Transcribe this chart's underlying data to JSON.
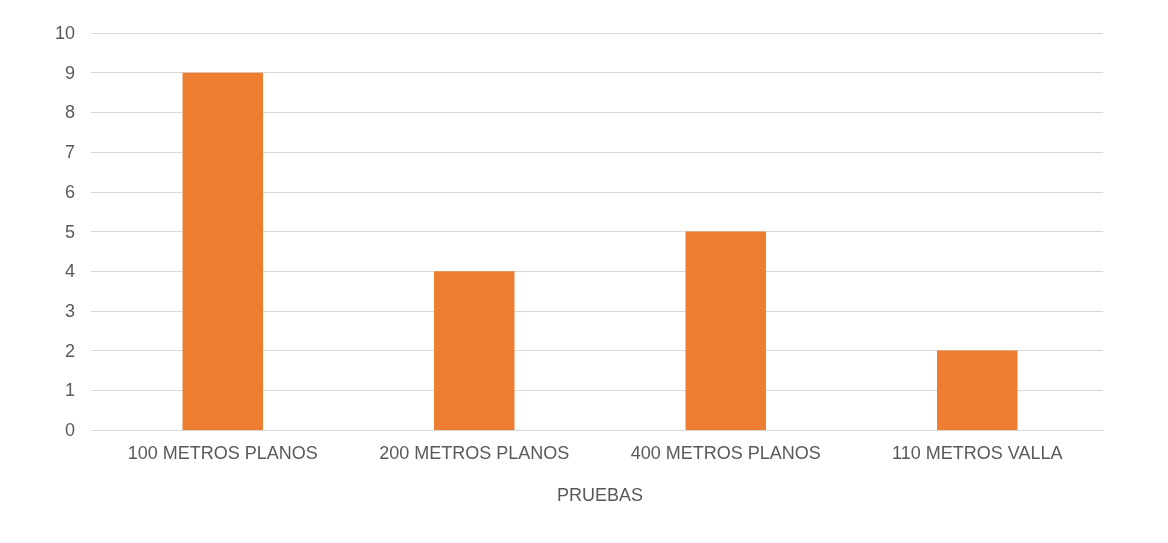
{
  "chart_data": {
    "type": "bar",
    "xlabel": "PRUEBAS",
    "categories": [
      "100 METROS PLANOS",
      "200 METROS PLANOS",
      "400 METROS PLANOS",
      "110 METROS VALLA"
    ],
    "values": [
      9,
      4,
      5,
      2
    ],
    "color": "#ed7d31",
    "ylim": [
      0,
      10
    ],
    "yticks": [
      0,
      1,
      2,
      3,
      4,
      5,
      6,
      7,
      8,
      9,
      10
    ],
    "grid": "y"
  }
}
